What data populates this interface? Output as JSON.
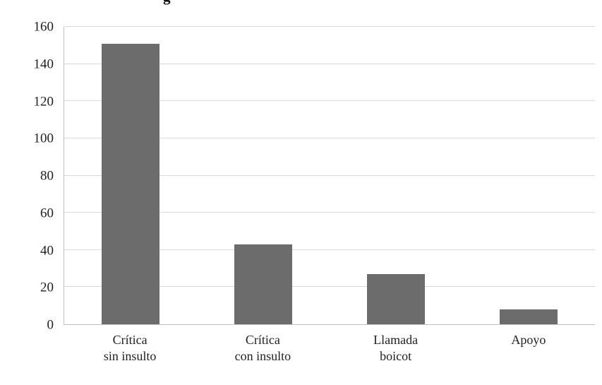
{
  "title_fragment": "g",
  "chart_data": {
    "type": "bar",
    "title": "",
    "xlabel": "",
    "ylabel": "",
    "categories": [
      "Crítica\nsin insulto",
      "Crítica\ncon insulto",
      "Llamada\nboicot",
      "Apoyo"
    ],
    "values": [
      151,
      43,
      27,
      8
    ],
    "ylim": [
      0,
      160
    ],
    "ytick_step": 20,
    "grid": true,
    "legend": "none",
    "bar_color": "#6c6c6c",
    "gridline_color": "#d9d9d9",
    "axis_color": "#c3c3c3",
    "text_color": "#1f1f1f"
  }
}
